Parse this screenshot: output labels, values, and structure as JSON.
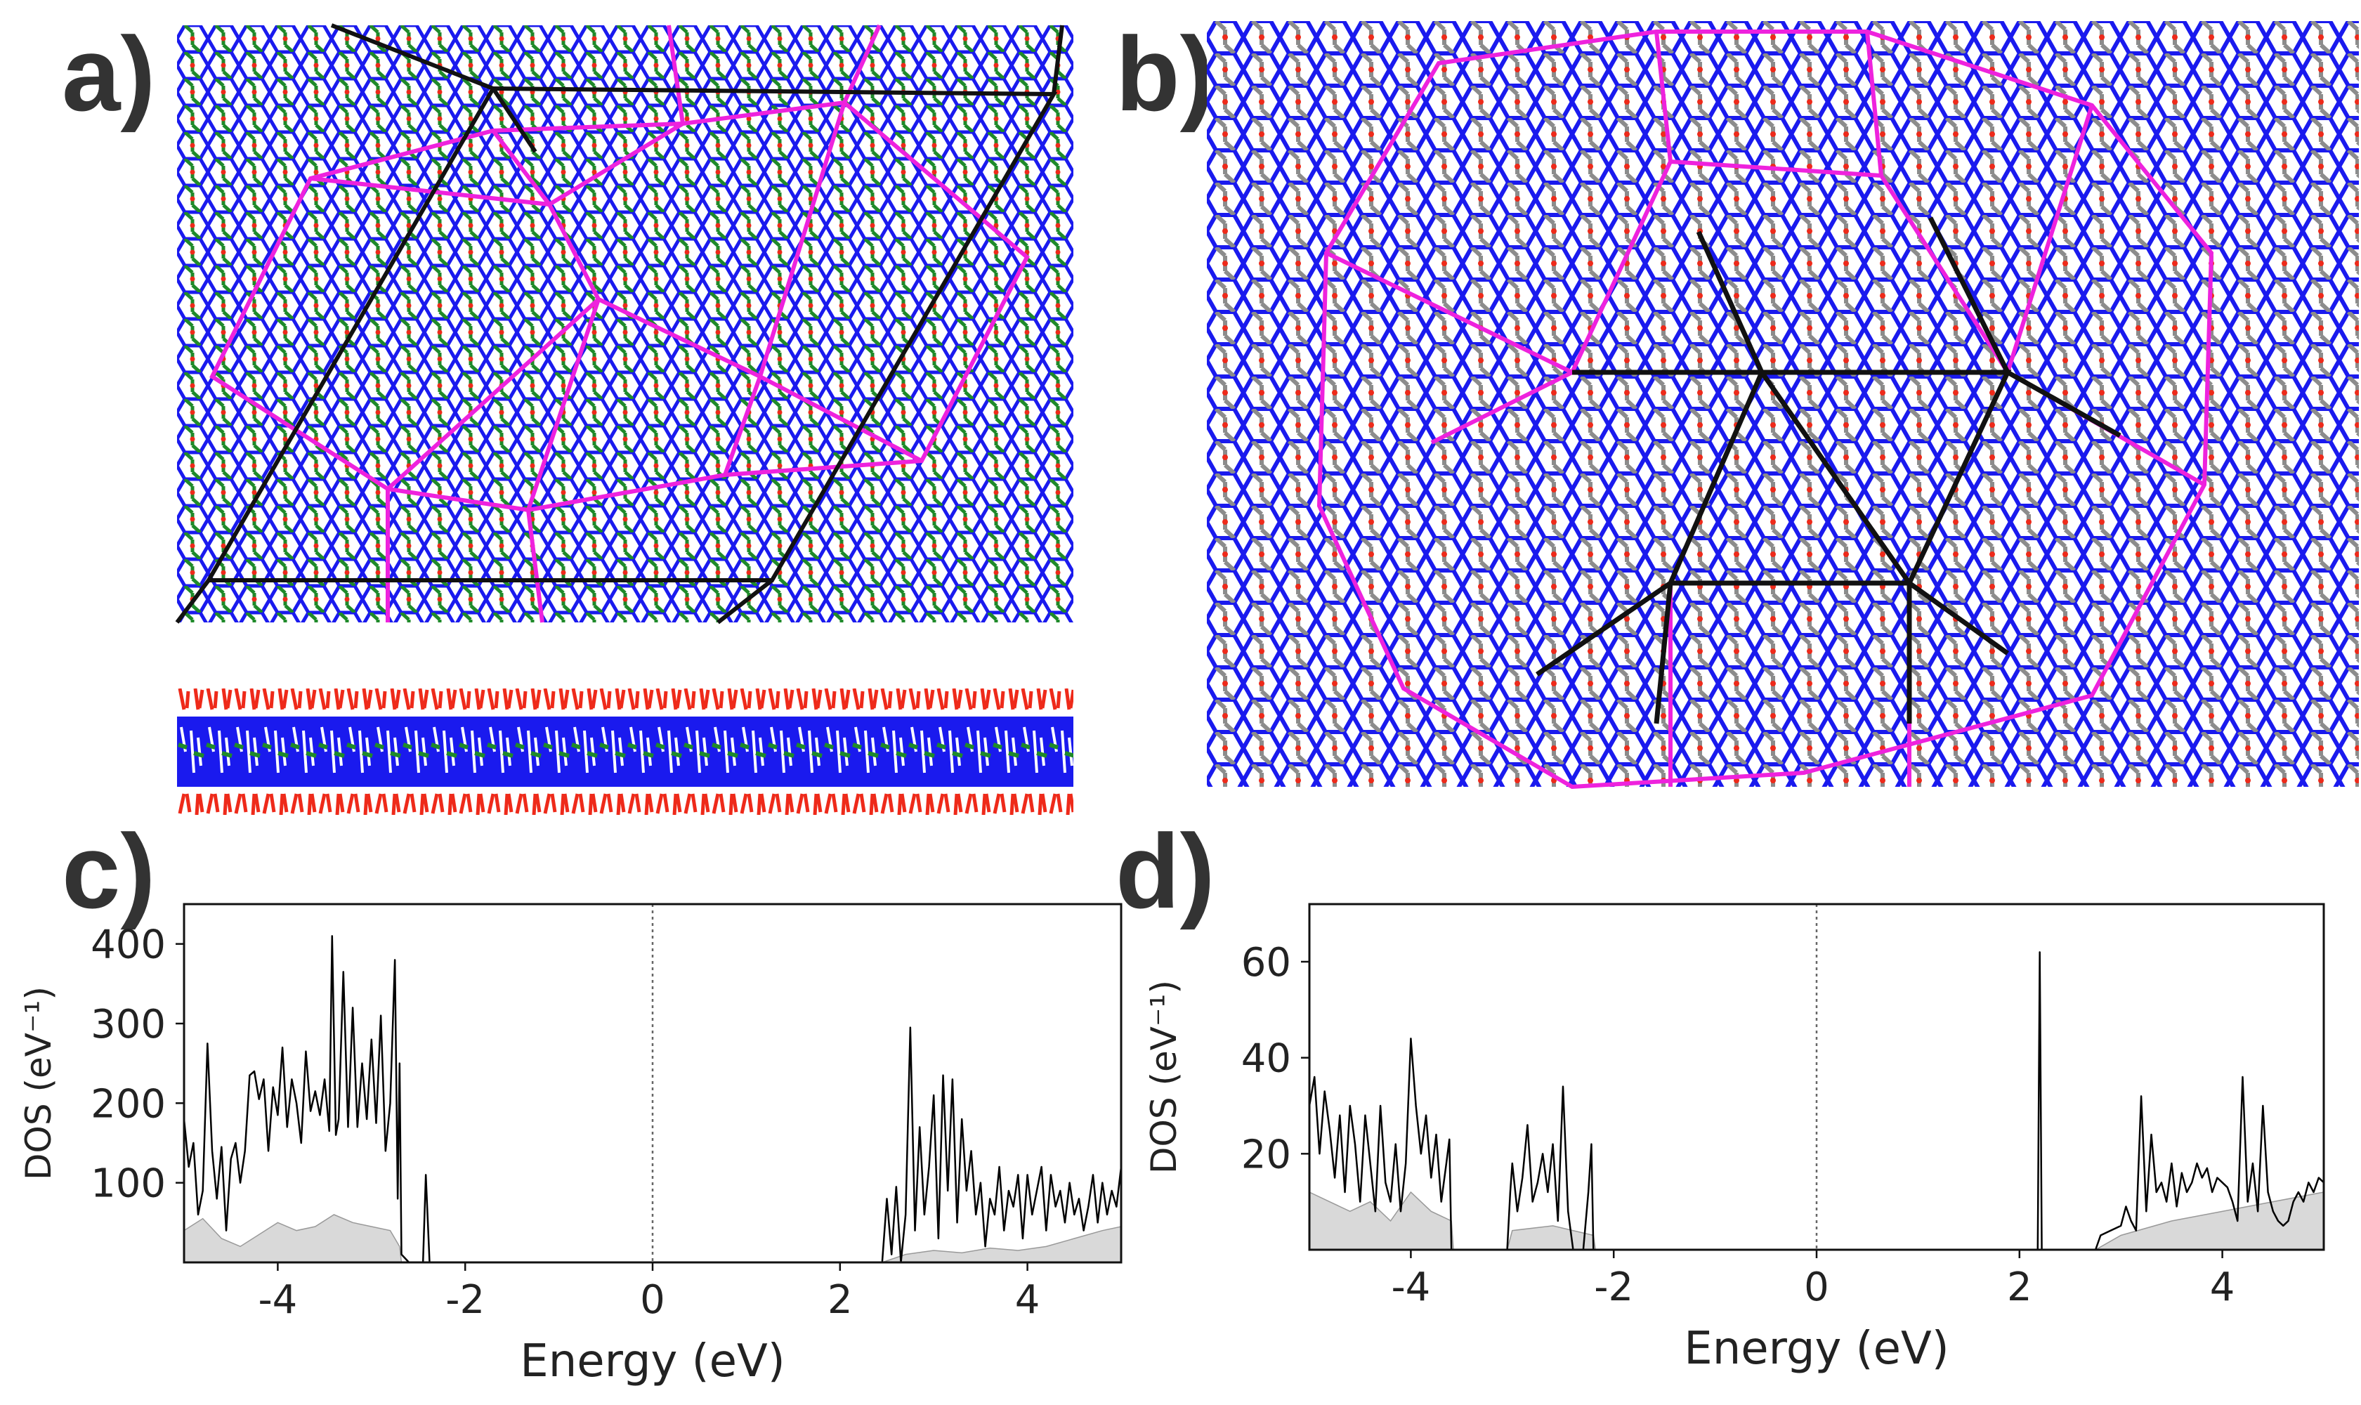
{
  "panels": {
    "a": "a)",
    "b": "b)",
    "c": "c)",
    "d": "d)"
  },
  "colors": {
    "network_primary": "#1a1aee",
    "network_secondary_a": "#1f8a2a",
    "network_secondary_b": "#8c8c8c",
    "atom_marker": "#ee2a1a",
    "tiling_outline": "#ee22dd",
    "superlattice_lines": "#111111",
    "dos_total": "#000000",
    "dos_partial_fill": "#d9d9d9",
    "fermi_line": "#666666"
  },
  "chart_data": [
    {
      "panel": "c",
      "type": "area",
      "title": "",
      "xlabel": "Energy (eV)",
      "ylabel": "DOS (eV⁻¹)",
      "xlim": [
        -5,
        5
      ],
      "ylim": [
        0,
        450
      ],
      "xticks": [
        -4,
        -2,
        0,
        2,
        4
      ],
      "xtick_labels": [
        "-4",
        "-2",
        "0",
        "2",
        "4"
      ],
      "yticks": [
        100,
        200,
        300,
        400
      ],
      "ytick_labels": [
        "100",
        "200",
        "300",
        "400"
      ],
      "fermi_level": 0,
      "series": [
        {
          "name": "total",
          "x": [
            -5.0,
            -4.95,
            -4.9,
            -4.85,
            -4.8,
            -4.75,
            -4.7,
            -4.65,
            -4.6,
            -4.55,
            -4.5,
            -4.45,
            -4.4,
            -4.35,
            -4.3,
            -4.25,
            -4.2,
            -4.15,
            -4.1,
            -4.05,
            -4.0,
            -3.95,
            -3.9,
            -3.85,
            -3.8,
            -3.75,
            -3.7,
            -3.65,
            -3.6,
            -3.55,
            -3.5,
            -3.45,
            -3.42,
            -3.38,
            -3.35,
            -3.3,
            -3.25,
            -3.2,
            -3.15,
            -3.1,
            -3.05,
            -3.0,
            -2.95,
            -2.9,
            -2.85,
            -2.8,
            -2.75,
            -2.72,
            -2.7,
            -2.68,
            -2.6,
            -2.45,
            -2.42,
            -2.38,
            -2.35,
            2.45,
            2.5,
            2.55,
            2.6,
            2.65,
            2.7,
            2.75,
            2.8,
            2.85,
            2.9,
            2.95,
            3.0,
            3.05,
            3.1,
            3.15,
            3.2,
            3.25,
            3.3,
            3.35,
            3.4,
            3.45,
            3.5,
            3.55,
            3.6,
            3.65,
            3.7,
            3.75,
            3.8,
            3.85,
            3.9,
            3.95,
            4.0,
            4.05,
            4.1,
            4.15,
            4.2,
            4.25,
            4.3,
            4.35,
            4.4,
            4.45,
            4.5,
            4.55,
            4.6,
            4.65,
            4.7,
            4.75,
            4.8,
            4.85,
            4.9,
            4.95,
            5.0
          ],
          "y": [
            180,
            120,
            150,
            60,
            90,
            275,
            140,
            80,
            145,
            40,
            130,
            150,
            100,
            140,
            235,
            240,
            205,
            230,
            140,
            220,
            185,
            270,
            170,
            230,
            200,
            150,
            265,
            190,
            215,
            185,
            230,
            165,
            410,
            160,
            180,
            365,
            170,
            320,
            170,
            250,
            180,
            280,
            175,
            310,
            140,
            200,
            380,
            80,
            250,
            10,
            0,
            0,
            110,
            0,
            0,
            0,
            80,
            10,
            95,
            0,
            60,
            295,
            40,
            170,
            60,
            120,
            210,
            30,
            235,
            90,
            230,
            50,
            180,
            90,
            140,
            60,
            100,
            20,
            80,
            60,
            120,
            40,
            90,
            70,
            110,
            30,
            110,
            60,
            90,
            120,
            40,
            110,
            70,
            90,
            50,
            100,
            60,
            80,
            40,
            70,
            110,
            50,
            100,
            60,
            90,
            70,
            120
          ]
        },
        {
          "name": "partial",
          "x": [
            -5.0,
            -4.8,
            -4.6,
            -4.4,
            -4.2,
            -4.0,
            -3.8,
            -3.6,
            -3.4,
            -3.2,
            -3.0,
            -2.8,
            -2.7,
            -2.68,
            2.45,
            2.7,
            3.0,
            3.3,
            3.6,
            3.9,
            4.2,
            4.5,
            4.8,
            5.0
          ],
          "y": [
            40,
            55,
            30,
            20,
            35,
            50,
            40,
            45,
            60,
            50,
            45,
            40,
            20,
            0,
            0,
            10,
            15,
            12,
            18,
            15,
            20,
            30,
            40,
            45
          ]
        }
      ]
    },
    {
      "panel": "d",
      "type": "area",
      "title": "",
      "xlabel": "Energy (eV)",
      "ylabel": "DOS (eV⁻¹)",
      "xlim": [
        -5,
        5
      ],
      "ylim": [
        0,
        72
      ],
      "xticks": [
        -4,
        -2,
        0,
        2,
        4
      ],
      "xtick_labels": [
        "-4",
        "-2",
        "0",
        "2",
        "4"
      ],
      "yticks": [
        20,
        40,
        60
      ],
      "ytick_labels": [
        "20",
        "40",
        "60"
      ],
      "fermi_level": 0,
      "series": [
        {
          "name": "total",
          "x": [
            -5.0,
            -4.95,
            -4.9,
            -4.85,
            -4.8,
            -4.75,
            -4.7,
            -4.65,
            -4.6,
            -4.55,
            -4.5,
            -4.45,
            -4.4,
            -4.35,
            -4.3,
            -4.25,
            -4.2,
            -4.15,
            -4.1,
            -4.05,
            -4.0,
            -3.95,
            -3.9,
            -3.85,
            -3.8,
            -3.75,
            -3.7,
            -3.65,
            -3.62,
            -3.6,
            -3.58,
            -3.05,
            -3.02,
            -3.0,
            -2.95,
            -2.9,
            -2.85,
            -2.8,
            -2.75,
            -2.7,
            -2.65,
            -2.6,
            -2.55,
            -2.5,
            -2.45,
            -2.4,
            -2.35,
            -2.3,
            -2.25,
            -2.22,
            -2.2,
            2.18,
            2.2,
            2.22,
            2.75,
            2.8,
            2.9,
            3.0,
            3.05,
            3.1,
            3.15,
            3.2,
            3.25,
            3.3,
            3.35,
            3.4,
            3.45,
            3.5,
            3.55,
            3.6,
            3.65,
            3.7,
            3.75,
            3.8,
            3.85,
            3.9,
            3.95,
            4.0,
            4.05,
            4.1,
            4.15,
            4.2,
            4.25,
            4.3,
            4.35,
            4.4,
            4.45,
            4.5,
            4.55,
            4.6,
            4.65,
            4.7,
            4.75,
            4.8,
            4.85,
            4.9,
            4.95,
            5.0
          ],
          "y": [
            30,
            36,
            20,
            33,
            25,
            15,
            28,
            12,
            30,
            22,
            10,
            28,
            18,
            8,
            30,
            14,
            10,
            22,
            8,
            18,
            44,
            30,
            20,
            28,
            15,
            24,
            10,
            18,
            23,
            0,
            0,
            0,
            12,
            18,
            8,
            15,
            26,
            10,
            14,
            20,
            12,
            22,
            6,
            34,
            8,
            0,
            0,
            0,
            12,
            22,
            0,
            0,
            62,
            0,
            0,
            3,
            4,
            5,
            9,
            6,
            4,
            32,
            8,
            24,
            12,
            14,
            10,
            18,
            9,
            16,
            12,
            14,
            18,
            15,
            17,
            12,
            15,
            14,
            13,
            10,
            6,
            36,
            10,
            18,
            8,
            30,
            12,
            8,
            6,
            5,
            6,
            10,
            12,
            10,
            14,
            12,
            15,
            14
          ]
        },
        {
          "name": "partial",
          "x": [
            -5.0,
            -4.8,
            -4.6,
            -4.4,
            -4.2,
            -4.0,
            -3.8,
            -3.6,
            -3.58,
            -3.05,
            -3.0,
            -2.6,
            -2.2,
            -2.18,
            2.75,
            3.0,
            3.5,
            4.0,
            4.5,
            5.0
          ],
          "y": [
            12,
            10,
            8,
            10,
            6,
            12,
            8,
            6,
            0,
            0,
            4,
            5,
            3,
            0,
            0,
            3,
            6,
            8,
            10,
            12
          ]
        }
      ]
    }
  ]
}
